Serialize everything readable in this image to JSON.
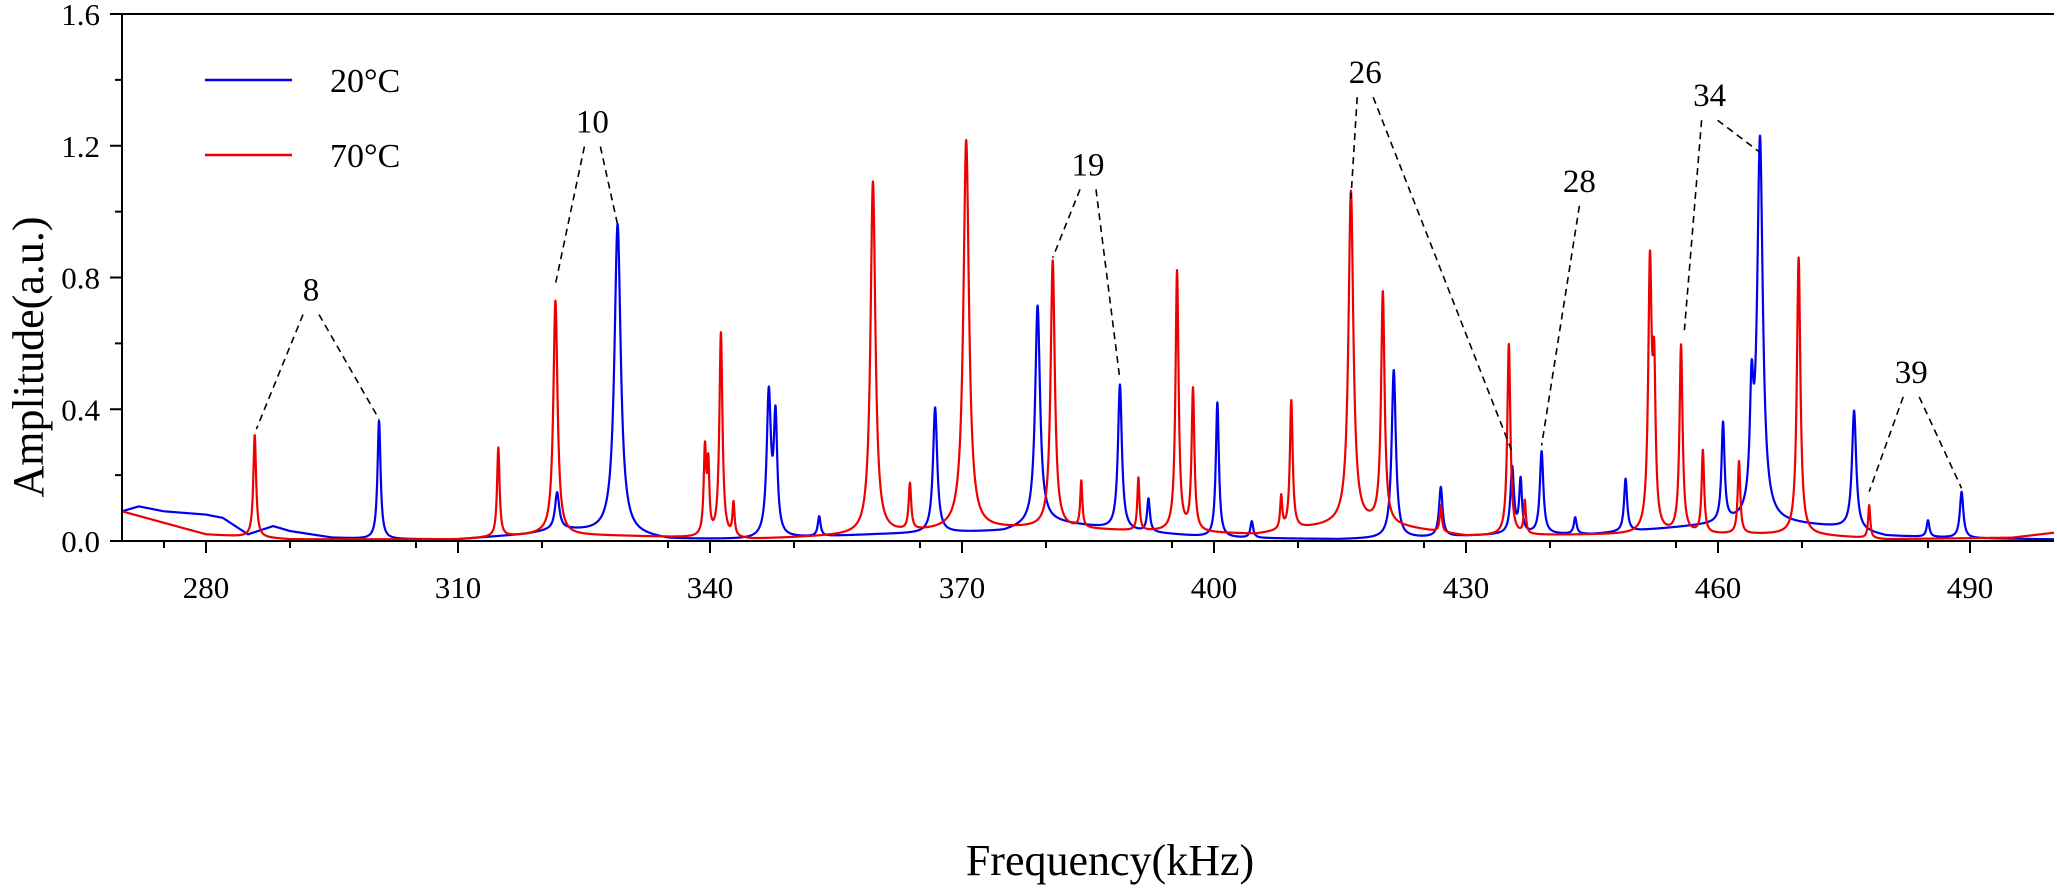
{
  "chart_data": {
    "type": "line",
    "title": "",
    "xlabel": "Frequency(kHz)",
    "ylabel": "Amplitude(a.u.)",
    "xlim": [
      270,
      500
    ],
    "ylim": [
      0.0,
      1.6
    ],
    "x_ticks": [
      280,
      310,
      340,
      370,
      400,
      430,
      460,
      490
    ],
    "y_ticks": [
      0.0,
      0.4,
      0.8,
      1.2,
      1.6
    ],
    "x_tick_labels": [
      "280",
      "310",
      "340",
      "370",
      "400",
      "430",
      "460",
      "490"
    ],
    "y_tick_labels": [
      "0.0",
      "0.4",
      "0.8",
      "1.2",
      "1.6"
    ],
    "grid": false,
    "legend_position": "top-left",
    "series": [
      {
        "name": "20°C",
        "color": "#0000ee",
        "baseline": [
          [
            270,
            0.09
          ],
          [
            272,
            0.105
          ],
          [
            275,
            0.09
          ],
          [
            280,
            0.08
          ],
          [
            282,
            0.07
          ],
          [
            285,
            0.02
          ],
          [
            288,
            0.045
          ],
          [
            290,
            0.03
          ],
          [
            295,
            0.01
          ],
          [
            300,
            0.005
          ],
          [
            310,
            0.005
          ],
          [
            318,
            0.02
          ],
          [
            322,
            0.035
          ],
          [
            330,
            0.02
          ],
          [
            335,
            0.005
          ],
          [
            345,
            0.005
          ],
          [
            360,
            0.02
          ],
          [
            375,
            0.03
          ],
          [
            380,
            0.06
          ],
          [
            390,
            0.03
          ],
          [
            400,
            0.01
          ],
          [
            415,
            0.005
          ],
          [
            425,
            0.01
          ],
          [
            435,
            0.02
          ],
          [
            445,
            0.02
          ],
          [
            455,
            0.04
          ],
          [
            465,
            0.06
          ],
          [
            475,
            0.04
          ],
          [
            480,
            0.015
          ],
          [
            490,
            0.008
          ],
          [
            500,
            0.005
          ]
        ],
        "peaks": [
          [
            300.6,
            0.36,
            0.22
          ],
          [
            321.8,
            0.11,
            0.3
          ],
          [
            329.0,
            0.94,
            0.45
          ],
          [
            353.0,
            0.06,
            0.2
          ],
          [
            347.0,
            0.43,
            0.3
          ],
          [
            347.8,
            0.35,
            0.25
          ],
          [
            366.8,
            0.38,
            0.3
          ],
          [
            379.0,
            0.66,
            0.35
          ],
          [
            388.8,
            0.44,
            0.28
          ],
          [
            392.2,
            0.1,
            0.2
          ],
          [
            400.4,
            0.41,
            0.22
          ],
          [
            404.5,
            0.05,
            0.2
          ],
          [
            421.4,
            0.51,
            0.3
          ],
          [
            427.0,
            0.15,
            0.25
          ],
          [
            435.5,
            0.2,
            0.25
          ],
          [
            436.5,
            0.16,
            0.2
          ],
          [
            439.0,
            0.25,
            0.25
          ],
          [
            443.0,
            0.05,
            0.2
          ],
          [
            449.0,
            0.16,
            0.22
          ],
          [
            460.6,
            0.3,
            0.22
          ],
          [
            464.0,
            0.33,
            0.25
          ],
          [
            465.0,
            1.15,
            0.4
          ],
          [
            476.2,
            0.36,
            0.3
          ],
          [
            485.0,
            0.05,
            0.2
          ],
          [
            489.0,
            0.14,
            0.25
          ]
        ]
      },
      {
        "name": "70°C",
        "color": "#ee0000",
        "baseline": [
          [
            270,
            0.09
          ],
          [
            280,
            0.02
          ],
          [
            290,
            0.005
          ],
          [
            310,
            0.005
          ],
          [
            320,
            0.02
          ],
          [
            330,
            0.015
          ],
          [
            345,
            0.005
          ],
          [
            360,
            0.02
          ],
          [
            370,
            0.035
          ],
          [
            380,
            0.04
          ],
          [
            390,
            0.03
          ],
          [
            405,
            0.02
          ],
          [
            415,
            0.05
          ],
          [
            420,
            0.05
          ],
          [
            430,
            0.015
          ],
          [
            450,
            0.02
          ],
          [
            460,
            0.02
          ],
          [
            470,
            0.02
          ],
          [
            480,
            0.005
          ],
          [
            495,
            0.01
          ],
          [
            500,
            0.025
          ]
        ],
        "peaks": [
          [
            285.8,
            0.31,
            0.2
          ],
          [
            314.8,
            0.27,
            0.18
          ],
          [
            321.6,
            0.71,
            0.3
          ],
          [
            339.4,
            0.26,
            0.18
          ],
          [
            339.8,
            0.2,
            0.15
          ],
          [
            341.3,
            0.62,
            0.22
          ],
          [
            342.8,
            0.1,
            0.15
          ],
          [
            359.4,
            1.07,
            0.35
          ],
          [
            363.8,
            0.14,
            0.18
          ],
          [
            370.5,
            1.18,
            0.4
          ],
          [
            380.8,
            0.81,
            0.3
          ],
          [
            384.2,
            0.14,
            0.15
          ],
          [
            391.0,
            0.16,
            0.15
          ],
          [
            395.6,
            0.79,
            0.22
          ],
          [
            397.5,
            0.43,
            0.2
          ],
          [
            408.0,
            0.1,
            0.15
          ],
          [
            409.2,
            0.39,
            0.2
          ],
          [
            416.3,
            1.01,
            0.35
          ],
          [
            420.1,
            0.7,
            0.25
          ],
          [
            427.0,
            0.08,
            0.15
          ],
          [
            435.1,
            0.58,
            0.22
          ],
          [
            437.0,
            0.1,
            0.15
          ],
          [
            451.9,
            0.8,
            0.25
          ],
          [
            452.4,
            0.43,
            0.2
          ],
          [
            455.6,
            0.57,
            0.22
          ],
          [
            458.2,
            0.25,
            0.18
          ],
          [
            462.5,
            0.22,
            0.18
          ],
          [
            469.6,
            0.84,
            0.25
          ],
          [
            478.0,
            0.1,
            0.15
          ]
        ]
      }
    ],
    "annotations": [
      {
        "label": "8",
        "x": 292.5,
        "y": 0.73,
        "targets": [
          [
            286.0,
            0.34
          ],
          [
            300.6,
            0.37
          ]
        ]
      },
      {
        "label": "10",
        "x": 326.0,
        "y": 1.24,
        "targets": [
          [
            321.6,
            0.78
          ],
          [
            329.0,
            0.96
          ]
        ]
      },
      {
        "label": "19",
        "x": 385.0,
        "y": 1.11,
        "targets": [
          [
            380.8,
            0.86
          ],
          [
            388.8,
            0.49
          ]
        ]
      },
      {
        "label": "26",
        "x": 418.0,
        "y": 1.39,
        "targets": [
          [
            416.3,
            1.04
          ],
          [
            435.5,
            0.27
          ]
        ]
      },
      {
        "label": "28",
        "x": 443.5,
        "y": 1.06,
        "targets": [
          [
            439.0,
            0.29
          ]
        ]
      },
      {
        "label": "34",
        "x": 459.0,
        "y": 1.32,
        "targets": [
          [
            456.0,
            0.64
          ],
          [
            465.0,
            1.18
          ]
        ]
      },
      {
        "label": "39",
        "x": 483.0,
        "y": 0.48,
        "targets": [
          [
            478.0,
            0.15
          ],
          [
            489.0,
            0.16
          ]
        ]
      }
    ]
  }
}
